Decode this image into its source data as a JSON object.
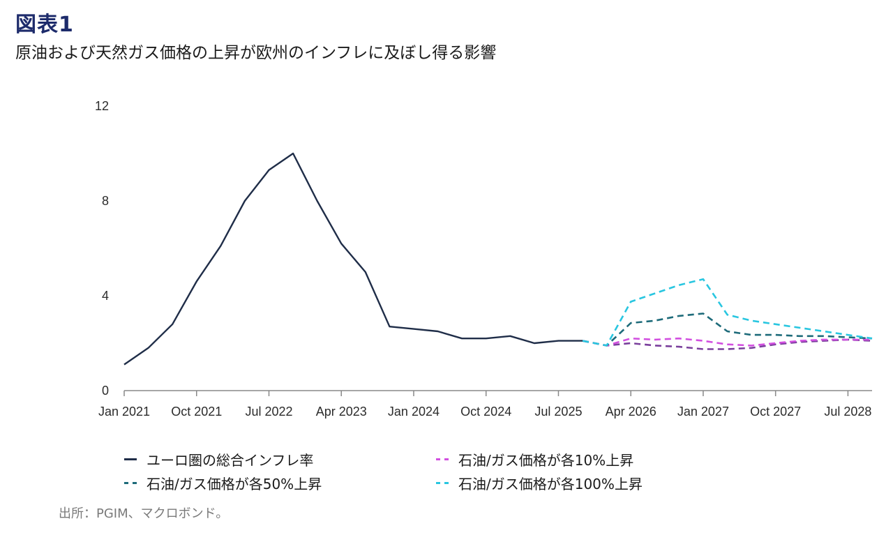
{
  "figure": {
    "title": "図表1",
    "subtitle": "原油および天然ガス価格の上昇が欧州のインフレに及ぼし得る影響",
    "source": "出所：PGIM、マクロボンド。"
  },
  "chart_data": {
    "type": "line",
    "title": "",
    "xlabel": "",
    "ylabel": "",
    "ylim": [
      0,
      12
    ],
    "yticks": [
      0,
      4,
      8,
      12
    ],
    "x_start": "2021-01",
    "x_end": "2028-10",
    "xticks": [
      {
        "date": "2021-01",
        "label": "Jan 2021"
      },
      {
        "date": "2021-10",
        "label": "Oct 2021"
      },
      {
        "date": "2022-07",
        "label": "Jul 2022"
      },
      {
        "date": "2023-04",
        "label": "Apr 2023"
      },
      {
        "date": "2024-01",
        "label": "Jan 2024"
      },
      {
        "date": "2024-10",
        "label": "Oct 2024"
      },
      {
        "date": "2025-07",
        "label": "Jul 2025"
      },
      {
        "date": "2026-04",
        "label": "Apr 2026"
      },
      {
        "date": "2027-01",
        "label": "Jan 2027"
      },
      {
        "date": "2027-10",
        "label": "Oct 2027"
      },
      {
        "date": "2028-07",
        "label": "Jul 2028"
      }
    ],
    "grid": false,
    "legend_position": "bottom",
    "series": [
      {
        "name": "ユーロ圏の総合インフレ率",
        "color": "#1f2d48",
        "style": "solid",
        "points": [
          [
            "2021-01",
            1.1
          ],
          [
            "2021-04",
            1.8
          ],
          [
            "2021-07",
            2.8
          ],
          [
            "2021-10",
            4.6
          ],
          [
            "2022-01",
            6.1
          ],
          [
            "2022-04",
            8.0
          ],
          [
            "2022-07",
            9.3
          ],
          [
            "2022-10",
            10.0
          ],
          [
            "2023-01",
            8.0
          ],
          [
            "2023-04",
            6.2
          ],
          [
            "2023-07",
            5.0
          ],
          [
            "2023-10",
            2.7
          ],
          [
            "2024-01",
            2.6
          ],
          [
            "2024-04",
            2.5
          ],
          [
            "2024-07",
            2.2
          ],
          [
            "2024-10",
            2.2
          ],
          [
            "2025-01",
            2.3
          ],
          [
            "2025-04",
            2.0
          ],
          [
            "2025-07",
            2.1
          ],
          [
            "2025-10",
            2.1
          ]
        ]
      },
      {
        "name": "石油/ガス価格が各10%上昇",
        "color": "#d24fe0",
        "style": "dashed",
        "points": [
          [
            "2025-10",
            2.1
          ],
          [
            "2026-01",
            1.9
          ],
          [
            "2026-04",
            2.2
          ],
          [
            "2026-07",
            2.15
          ],
          [
            "2026-10",
            2.2
          ],
          [
            "2027-01",
            2.1
          ],
          [
            "2027-04",
            1.95
          ],
          [
            "2027-07",
            1.9
          ],
          [
            "2027-10",
            2.0
          ],
          [
            "2028-01",
            2.1
          ],
          [
            "2028-04",
            2.15
          ],
          [
            "2028-07",
            2.15
          ],
          [
            "2028-10",
            2.15
          ]
        ]
      },
      {
        "name": "石油/ガス価格が各50%上昇",
        "color": "#1e6b7a",
        "style": "dashed",
        "points": [
          [
            "2025-10",
            2.1
          ],
          [
            "2026-01",
            1.9
          ],
          [
            "2026-04",
            2.85
          ],
          [
            "2026-07",
            2.95
          ],
          [
            "2026-10",
            3.15
          ],
          [
            "2027-01",
            3.25
          ],
          [
            "2027-04",
            2.5
          ],
          [
            "2027-07",
            2.35
          ],
          [
            "2027-10",
            2.35
          ],
          [
            "2028-01",
            2.3
          ],
          [
            "2028-04",
            2.3
          ],
          [
            "2028-07",
            2.25
          ],
          [
            "2028-10",
            2.2
          ]
        ]
      },
      {
        "name": "石油/ガス価格が各100%上昇",
        "color": "#29c6e0",
        "style": "dashed",
        "points": [
          [
            "2025-10",
            2.1
          ],
          [
            "2026-01",
            1.9
          ],
          [
            "2026-04",
            3.75
          ],
          [
            "2026-07",
            4.1
          ],
          [
            "2026-10",
            4.45
          ],
          [
            "2027-01",
            4.7
          ],
          [
            "2027-04",
            3.2
          ],
          [
            "2027-07",
            2.95
          ],
          [
            "2027-10",
            2.8
          ],
          [
            "2028-01",
            2.65
          ],
          [
            "2028-04",
            2.5
          ],
          [
            "2028-07",
            2.35
          ],
          [
            "2028-10",
            2.2
          ]
        ]
      },
      {
        "name": "",
        "color": "#7a3f9c",
        "style": "dashed",
        "points": [
          [
            "2025-10",
            2.1
          ],
          [
            "2026-01",
            1.9
          ],
          [
            "2026-04",
            2.0
          ],
          [
            "2026-07",
            1.9
          ],
          [
            "2026-10",
            1.85
          ],
          [
            "2027-01",
            1.75
          ],
          [
            "2027-04",
            1.75
          ],
          [
            "2027-07",
            1.8
          ],
          [
            "2027-10",
            1.95
          ],
          [
            "2028-01",
            2.05
          ],
          [
            "2028-04",
            2.1
          ],
          [
            "2028-07",
            2.15
          ],
          [
            "2028-10",
            2.1
          ]
        ]
      }
    ]
  },
  "legend": {
    "items": [
      {
        "label": "ユーロ圏の総合インフレ率",
        "color": "#1f2d48",
        "style": "solid"
      },
      {
        "label": "石油/ガス価格が各50%上昇",
        "color": "#1e6b7a",
        "style": "dashed"
      },
      {
        "label": "石油/ガス価格が各10%上昇",
        "color": "#d24fe0",
        "style": "dashed"
      },
      {
        "label": "石油/ガス価格が各100%上昇",
        "color": "#29c6e0",
        "style": "dashed"
      }
    ]
  }
}
